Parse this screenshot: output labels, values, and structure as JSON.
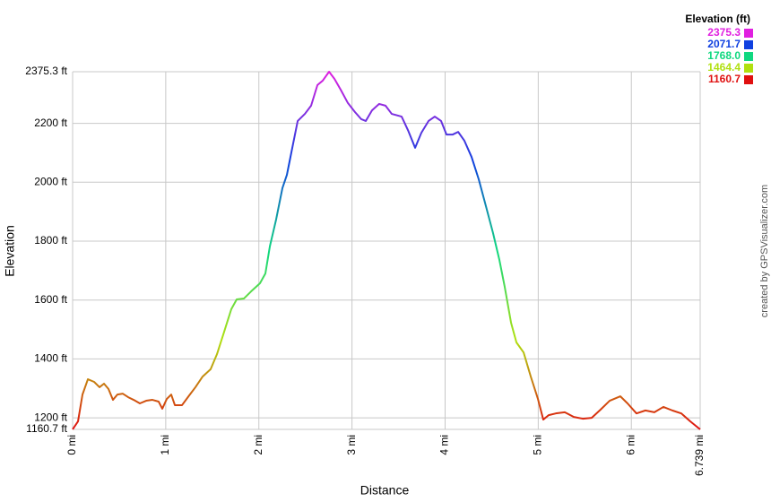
{
  "chart_data": {
    "type": "line",
    "x_label": "Distance",
    "y_label": "Elevation",
    "credit": "created by GPSVisualizer.com",
    "x": [
      0,
      0.058,
      0.106,
      0.164,
      0.231,
      0.289,
      0.337,
      0.385,
      0.433,
      0.481,
      0.539,
      0.597,
      0.655,
      0.722,
      0.79,
      0.857,
      0.924,
      0.963,
      1.011,
      1.059,
      1.098,
      1.175,
      1.252,
      1.319,
      1.396,
      1.482,
      1.55,
      1.627,
      1.704,
      1.762,
      1.839,
      1.916,
      2.012,
      2.07,
      2.118,
      2.185,
      2.253,
      2.301,
      2.349,
      2.417,
      2.494,
      2.561,
      2.629,
      2.686,
      2.754,
      2.812,
      2.879,
      2.956,
      3.033,
      3.1,
      3.148,
      3.215,
      3.292,
      3.36,
      3.427,
      3.533,
      3.601,
      3.678,
      3.745,
      3.822,
      3.889,
      3.957,
      4.015,
      4.082,
      4.14,
      4.207,
      4.284,
      4.361,
      4.438,
      4.515,
      4.583,
      4.64,
      4.708,
      4.766,
      4.843,
      4.92,
      4.997,
      5.054,
      5.112,
      5.189,
      5.285,
      5.382,
      5.478,
      5.574,
      5.67,
      5.767,
      5.882,
      5.959,
      6.055,
      6.151,
      6.247,
      6.344,
      6.44,
      6.536,
      6.632,
      6.739
    ],
    "series": [
      {
        "name": "Elevation (ft)",
        "values": [
          1160.7,
          1188,
          1279,
          1331,
          1322,
          1304,
          1316,
          1298,
          1261,
          1279,
          1282,
          1270,
          1261,
          1249,
          1258,
          1261,
          1255,
          1231,
          1264,
          1279,
          1243,
          1243,
          1276,
          1304,
          1340,
          1365,
          1416,
          1492,
          1569,
          1602,
          1605,
          1629,
          1657,
          1690,
          1782,
          1873,
          1980,
          2025,
          2101,
          2208,
          2232,
          2260,
          2330,
          2345,
          2375.3,
          2351,
          2314,
          2269,
          2238,
          2214,
          2208,
          2244,
          2266,
          2260,
          2232,
          2223,
          2177,
          2117,
          2168,
          2208,
          2223,
          2208,
          2162,
          2162,
          2171,
          2141,
          2086,
          2010,
          1919,
          1827,
          1736,
          1645,
          1523,
          1456,
          1422,
          1340,
          1264,
          1194,
          1209,
          1215,
          1219,
          1203,
          1197,
          1200,
          1228,
          1258,
          1273,
          1249,
          1215,
          1225,
          1219,
          1237,
          1225,
          1215,
          1188,
          1160.7
        ]
      }
    ],
    "legend": {
      "title": "Elevation (ft)",
      "items": [
        {
          "value": 2375.3,
          "color": "#e020e0"
        },
        {
          "value": 2071.7,
          "color": "#1040e0"
        },
        {
          "value": 1768,
          "label": "1768.0",
          "color": "#10d880"
        },
        {
          "value": 1464.4,
          "color": "#b0e010"
        },
        {
          "value": 1160.7,
          "color": "#e01010"
        }
      ]
    },
    "xlim": [
      0,
      6.739
    ],
    "xticks": [
      {
        "value": 0,
        "label": "0 mi"
      },
      {
        "value": 1,
        "label": "1 mi"
      },
      {
        "value": 2,
        "label": "2 mi"
      },
      {
        "value": 3,
        "label": "3 mi"
      },
      {
        "value": 4,
        "label": "4 mi"
      },
      {
        "value": 5,
        "label": "5 mi"
      },
      {
        "value": 6,
        "label": "6 mi"
      },
      {
        "value": 6.739,
        "label": "6.739 mi"
      }
    ],
    "ylim": [
      1160.7,
      2375.3
    ],
    "yticks": [
      {
        "value": 1160.7,
        "label": "1160.7 ft"
      },
      {
        "value": 1200,
        "label": "1200 ft"
      },
      {
        "value": 1400,
        "label": "1400 ft"
      },
      {
        "value": 1600,
        "label": "1600 ft"
      },
      {
        "value": 1800,
        "label": "1800 ft"
      },
      {
        "value": 2000,
        "label": "2000 ft"
      },
      {
        "value": 2200,
        "label": "2200 ft"
      },
      {
        "value": 2375.3,
        "label": "2375.3 ft"
      }
    ],
    "grid": true
  }
}
